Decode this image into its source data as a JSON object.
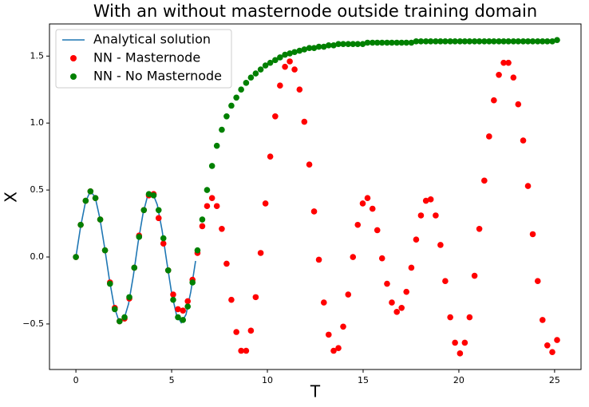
{
  "chart_data": {
    "type": "line-scatter",
    "title": "With an without masternode outside training domain",
    "xlabel": "T",
    "ylabel": "X",
    "x": [
      0,
      0.25,
      0.51,
      0.76,
      1.02,
      1.27,
      1.52,
      1.78,
      2.03,
      2.28,
      2.54,
      2.79,
      3.05,
      3.3,
      3.55,
      3.81,
      4.06,
      4.32,
      4.57,
      4.82,
      5.08,
      5.33,
      5.59,
      5.84,
      6.09,
      6.35,
      6.6,
      6.85,
      7.11,
      7.36,
      7.62,
      7.87,
      8.12,
      8.38,
      8.63,
      8.89,
      9.14,
      9.39,
      9.65,
      9.9,
      10.15,
      10.41,
      10.66,
      10.92,
      11.17,
      11.42,
      11.68,
      11.93,
      12.19,
      12.44,
      12.69,
      12.95,
      13.2,
      13.46,
      13.71,
      13.96,
      14.22,
      14.47,
      14.72,
      14.98,
      15.23,
      15.49,
      15.74,
      15.99,
      16.25,
      16.5,
      16.76,
      17.01,
      17.26,
      17.52,
      17.77,
      18.02,
      18.28,
      18.53,
      18.79,
      19.04,
      19.29,
      19.55,
      19.8,
      20.06,
      20.31,
      20.56,
      20.82,
      21.07,
      21.33,
      21.58,
      21.83,
      22.09,
      22.34,
      22.59,
      22.85,
      23.1,
      23.36,
      23.61,
      23.86,
      24.12,
      24.37,
      24.62,
      24.88,
      25.13
    ],
    "series": [
      {
        "name": "Analytical solution",
        "color": "#1f77b4",
        "kind": "line",
        "x": [
          0,
          0.25,
          0.5,
          0.75,
          1,
          1.25,
          1.5,
          1.75,
          2,
          2.25,
          2.5,
          2.75,
          3,
          3.25,
          3.5,
          3.75,
          4,
          4.25,
          4.5,
          4.75,
          5,
          5.25,
          5.5,
          5.75,
          6,
          6.25
        ],
        "values": [
          0,
          0.23,
          0.41,
          0.49,
          0.45,
          0.29,
          0.07,
          -0.17,
          -0.37,
          -0.48,
          -0.47,
          -0.35,
          -0.14,
          0.11,
          0.32,
          0.46,
          0.48,
          0.39,
          0.2,
          -0.04,
          -0.27,
          -0.43,
          -0.49,
          -0.43,
          -0.26,
          -0.03
        ]
      },
      {
        "name": "NN - Masternode",
        "color": "#ff0000",
        "kind": "scatter",
        "values": [
          0,
          0.24,
          0.42,
          0.49,
          0.44,
          0.28,
          0.05,
          -0.19,
          -0.38,
          -0.48,
          -0.46,
          -0.31,
          -0.08,
          0.16,
          0.35,
          0.46,
          0.47,
          0.29,
          0.1,
          -0.1,
          -0.28,
          -0.39,
          -0.4,
          -0.33,
          -0.17,
          0.03,
          0.23,
          0.38,
          0.44,
          0.38,
          0.21,
          -0.05,
          -0.32,
          -0.56,
          -0.7,
          -0.7,
          -0.55,
          -0.3,
          0.03,
          0.4,
          0.75,
          1.05,
          1.28,
          1.42,
          1.46,
          1.4,
          1.25,
          1.01,
          0.69,
          0.34,
          -0.02,
          -0.34,
          -0.58,
          -0.7,
          -0.68,
          -0.52,
          -0.28,
          0,
          0.24,
          0.4,
          0.44,
          0.36,
          0.2,
          -0.01,
          -0.2,
          -0.34,
          -0.41,
          -0.38,
          -0.26,
          -0.08,
          0.13,
          0.31,
          0.42,
          0.43,
          0.31,
          0.09,
          -0.18,
          -0.45,
          -0.64,
          -0.72,
          -0.64,
          -0.45,
          -0.14,
          0.21,
          0.57,
          0.9,
          1.17,
          1.36,
          1.45,
          1.45,
          1.34,
          1.14,
          0.87,
          0.53,
          0.17,
          -0.18,
          -0.47,
          -0.66,
          -0.71,
          -0.62
        ]
      },
      {
        "name": "NN - No Masternode",
        "color": "#008000",
        "kind": "scatter",
        "values": [
          0,
          0.24,
          0.42,
          0.49,
          0.44,
          0.28,
          0.05,
          -0.2,
          -0.39,
          -0.48,
          -0.45,
          -0.3,
          -0.08,
          0.15,
          0.35,
          0.47,
          0.46,
          0.35,
          0.14,
          -0.1,
          -0.32,
          -0.45,
          -0.47,
          -0.37,
          -0.19,
          0.05,
          0.28,
          0.5,
          0.68,
          0.83,
          0.95,
          1.05,
          1.13,
          1.19,
          1.25,
          1.3,
          1.34,
          1.37,
          1.4,
          1.43,
          1.45,
          1.47,
          1.49,
          1.51,
          1.52,
          1.53,
          1.54,
          1.55,
          1.56,
          1.56,
          1.57,
          1.57,
          1.58,
          1.58,
          1.59,
          1.59,
          1.59,
          1.59,
          1.59,
          1.59,
          1.6,
          1.6,
          1.6,
          1.6,
          1.6,
          1.6,
          1.6,
          1.6,
          1.6,
          1.6,
          1.61,
          1.61,
          1.61,
          1.61,
          1.61,
          1.61,
          1.61,
          1.61,
          1.61,
          1.61,
          1.61,
          1.61,
          1.61,
          1.61,
          1.61,
          1.61,
          1.61,
          1.61,
          1.61,
          1.61,
          1.61,
          1.61,
          1.61,
          1.61,
          1.61,
          1.61,
          1.61,
          1.61,
          1.61,
          1.62
        ]
      }
    ],
    "xlim": [
      -1.38,
      26.38
    ],
    "ylim": [
      -0.84,
      1.74
    ],
    "xticks": [
      0,
      5,
      10,
      15,
      20,
      25
    ],
    "yticks": [
      {
        "value": -0.5,
        "label": "−0.5"
      },
      {
        "value": 0,
        "label": "0.0"
      },
      0.5,
      {
        "value": 1,
        "label": "1.0"
      },
      1.5
    ],
    "legend": "upper left",
    "grid": false
  }
}
